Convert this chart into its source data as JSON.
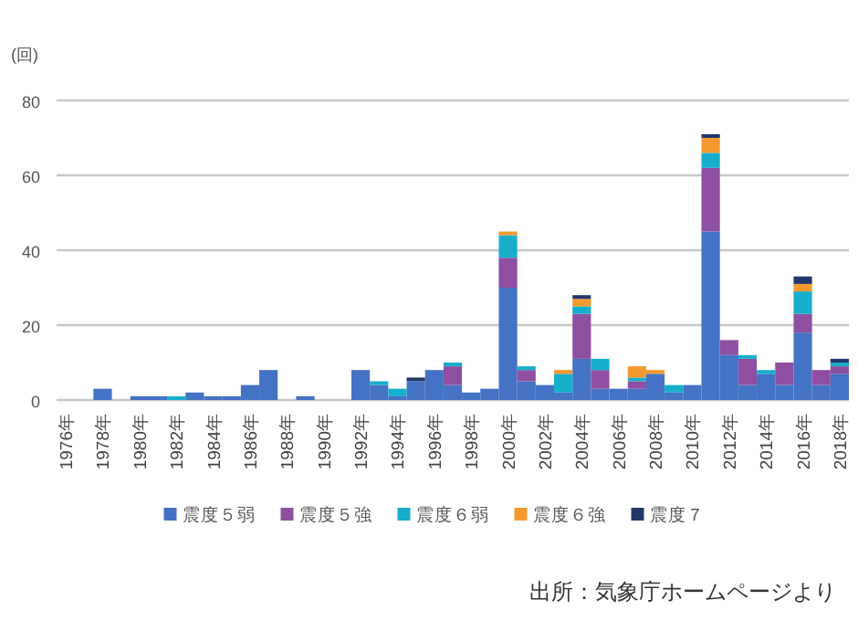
{
  "chart_data": {
    "type": "bar",
    "stacked": true,
    "ylabel": "(回)",
    "categories": [
      "1976年",
      null,
      "1978年",
      null,
      "1980年",
      null,
      "1982年",
      null,
      "1984年",
      null,
      "1986年",
      null,
      "1988年",
      null,
      "1990年",
      null,
      "1992年",
      null,
      "1994年",
      null,
      "1996年",
      null,
      "1998年",
      null,
      "2000年",
      null,
      "2002年",
      null,
      "2004年",
      null,
      "2006年",
      null,
      "2008年",
      null,
      "2010年",
      null,
      "2012年",
      null,
      "2014年",
      null,
      "2016年",
      null,
      "2018年"
    ],
    "series": [
      {
        "name": "震度５弱",
        "color": "#4472c4",
        "values": [
          0,
          0,
          3,
          0,
          1,
          1,
          0,
          2,
          1,
          1,
          4,
          8,
          0,
          1,
          0,
          0,
          8,
          4,
          1,
          5,
          8,
          4,
          2,
          3,
          30,
          5,
          4,
          2,
          11,
          3,
          3,
          3,
          7,
          2,
          4,
          45,
          12,
          4,
          7,
          4,
          18,
          4,
          7
        ]
      },
      {
        "name": "震度５強",
        "color": "#8e4fa0",
        "values": [
          0,
          0,
          0,
          0,
          0,
          0,
          0,
          0,
          0,
          0,
          0,
          0,
          0,
          0,
          0,
          0,
          0,
          0,
          0,
          0,
          0,
          5,
          0,
          0,
          8,
          3,
          0,
          0,
          12,
          5,
          0,
          2,
          0,
          0,
          0,
          17,
          4,
          7,
          0,
          6,
          5,
          4,
          2
        ]
      },
      {
        "name": "震度６弱",
        "color": "#17aecb",
        "values": [
          0,
          0,
          0,
          0,
          0,
          0,
          1,
          0,
          0,
          0,
          0,
          0,
          0,
          0,
          0,
          0,
          0,
          1,
          2,
          0,
          0,
          1,
          0,
          0,
          6,
          1,
          0,
          5,
          2,
          3,
          0,
          1,
          0,
          2,
          0,
          4,
          0,
          1,
          1,
          0,
          6,
          0,
          1
        ]
      },
      {
        "name": "震度６強",
        "color": "#f5992e",
        "values": [
          0,
          0,
          0,
          0,
          0,
          0,
          0,
          0,
          0,
          0,
          0,
          0,
          0,
          0,
          0,
          0,
          0,
          0,
          0,
          0,
          0,
          0,
          0,
          0,
          1,
          0,
          0,
          1,
          2,
          0,
          0,
          3,
          1,
          0,
          0,
          4,
          0,
          0,
          0,
          0,
          2,
          0,
          0
        ]
      },
      {
        "name": "震度７",
        "color": "#22386a",
        "values": [
          0,
          0,
          0,
          0,
          0,
          0,
          0,
          0,
          0,
          0,
          0,
          0,
          0,
          0,
          0,
          0,
          0,
          0,
          0,
          1,
          0,
          0,
          0,
          0,
          0,
          0,
          0,
          0,
          1,
          0,
          0,
          0,
          0,
          0,
          0,
          1,
          0,
          0,
          0,
          0,
          2,
          0,
          1
        ]
      }
    ],
    "ylim": [
      0,
      80
    ],
    "yticks": [
      0,
      20,
      40,
      60,
      80
    ],
    "grid": "y",
    "legend": "bottom",
    "annotations": [
      "出所：気象庁ホームページより"
    ]
  }
}
